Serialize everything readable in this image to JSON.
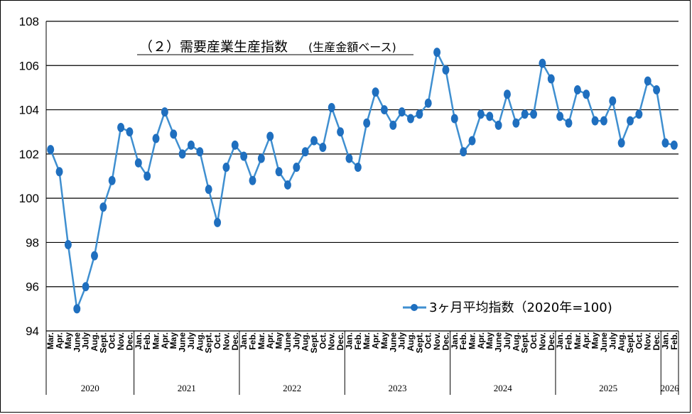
{
  "chart_data": {
    "type": "line",
    "title_main": "（２）需要産業生産指数",
    "title_sub": "(生産金額ベース)",
    "ylim": [
      94,
      108
    ],
    "yticks": [
      94,
      96,
      98,
      100,
      102,
      104,
      106,
      108
    ],
    "grid": true,
    "legend_position": "bottom-right",
    "series": [
      {
        "name": "3ヶ月平均指数（2020年=100)",
        "color": "#3f8fd0",
        "marker_color": "#1f6fbf",
        "values": [
          102.2,
          101.2,
          97.9,
          95.0,
          96.0,
          97.4,
          99.6,
          100.8,
          103.2,
          103.0,
          101.6,
          101.0,
          102.7,
          103.9,
          102.9,
          102.0,
          102.4,
          102.1,
          100.4,
          98.9,
          101.4,
          102.4,
          101.9,
          100.8,
          101.8,
          102.8,
          101.2,
          100.6,
          101.4,
          102.1,
          102.6,
          102.3,
          104.1,
          103.0,
          101.8,
          101.4,
          103.4,
          104.8,
          104.0,
          103.3,
          103.9,
          103.6,
          103.8,
          104.3,
          106.6,
          105.8,
          103.6,
          102.1,
          102.6,
          103.8,
          103.7,
          103.3,
          104.7,
          103.4,
          103.8,
          103.8,
          106.1,
          105.4,
          103.7,
          103.4,
          104.9,
          104.7,
          103.5,
          103.5,
          104.4,
          102.5,
          103.5,
          103.8,
          105.3,
          104.9,
          102.5,
          102.4
        ]
      }
    ],
    "months": [
      "Mar.",
      "Apr.",
      "May",
      "June",
      "July",
      "Aug.",
      "Sept.",
      "Oct.",
      "Nov.",
      "Dec.",
      "Jan.",
      "Feb.",
      "Mar.",
      "Apr.",
      "May",
      "June",
      "July",
      "Aug.",
      "Sept.",
      "Oct.",
      "Nov.",
      "Dec.",
      "Jan.",
      "Feb.",
      "Mar.",
      "Apr.",
      "May",
      "June",
      "July",
      "Aug.",
      "Sept.",
      "Oct.",
      "Nov.",
      "Dec.",
      "Jan.",
      "Feb.",
      "Mar.",
      "Apr.",
      "May",
      "June",
      "July",
      "Aug.",
      "Sept.",
      "Oct.",
      "Nov.",
      "Dec.",
      "Jan.",
      "Feb.",
      "Mar.",
      "Apr.",
      "May",
      "June",
      "July",
      "Aug.",
      "Sept.",
      "Oct.",
      "Nov.",
      "Dec.",
      "Jan.",
      "Feb.",
      "Mar.",
      "Apr.",
      "May",
      "June",
      "July",
      "Aug.",
      "Sept.",
      "Oct.",
      "Nov.",
      "Dec.",
      "Jan.",
      "Feb."
    ],
    "years": [
      {
        "label": "2020",
        "count": 10
      },
      {
        "label": "2021",
        "count": 12
      },
      {
        "label": "2022",
        "count": 12
      },
      {
        "label": "2023",
        "count": 12
      },
      {
        "label": "2024",
        "count": 12
      },
      {
        "label": "2025",
        "count": 12
      },
      {
        "label": "2026",
        "count": 2
      }
    ]
  }
}
